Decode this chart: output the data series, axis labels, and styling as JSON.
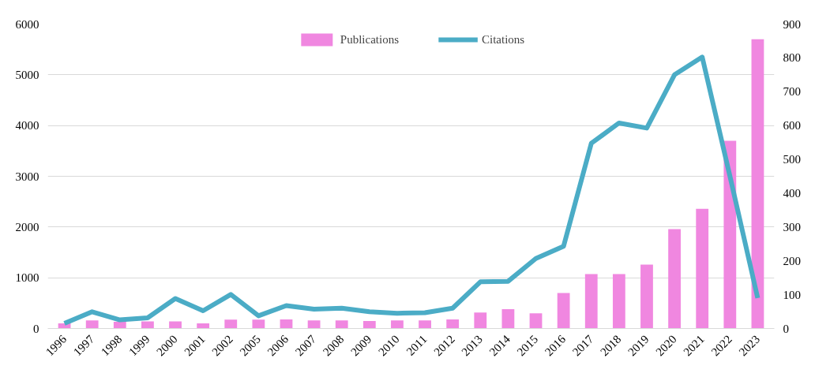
{
  "chart_data": {
    "type": "bar",
    "categories": [
      "1996",
      "1997",
      "1998",
      "1999",
      "2000",
      "2001",
      "2002",
      "2005",
      "2006",
      "2007",
      "2008",
      "2009",
      "2010",
      "2011",
      "2012",
      "2013",
      "2014",
      "2015",
      "2016",
      "2017",
      "2018",
      "2019",
      "2020",
      "2021",
      "2022",
      "2023"
    ],
    "series": [
      {
        "name": "Publications",
        "axis": "y2",
        "color": "#f087e0",
        "values": [
          15,
          24,
          20,
          21,
          21,
          15,
          26,
          26,
          27,
          24,
          24,
          22,
          24,
          24,
          27,
          47,
          57,
          45,
          105,
          161,
          161,
          189,
          294,
          354,
          555,
          855
        ]
      },
      {
        "name": "Citations",
        "type": "line",
        "color": "#4bacc6",
        "values": [
          100,
          330,
          170,
          210,
          590,
          350,
          670,
          250,
          450,
          380,
          400,
          330,
          300,
          310,
          400,
          920,
          930,
          1380,
          1620,
          3650,
          4050,
          3950,
          5000,
          5350,
          3000,
          600
        ]
      }
    ],
    "ylim": [
      0,
      6000
    ],
    "yticks": [
      0,
      1000,
      2000,
      3000,
      4000,
      5000,
      6000
    ],
    "y2lim": [
      0,
      900
    ],
    "y2ticks": [
      0,
      100,
      200,
      300,
      400,
      500,
      600,
      700,
      800,
      900
    ],
    "grid": "y",
    "legend": "top"
  }
}
